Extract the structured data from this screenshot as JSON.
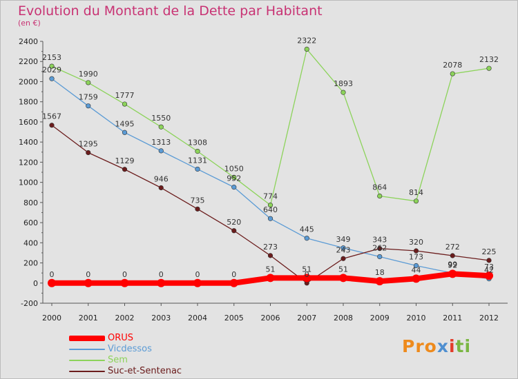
{
  "title": "Evolution du Montant de la Dette par Habitant",
  "subtitle": "(en €)",
  "brand": {
    "part1": "Pro",
    "part2": "x",
    "part3": "i",
    "part4": "ti"
  },
  "colors": {
    "background": "#e3e3e3",
    "title": "#c83273",
    "ORUS": "#ff0000",
    "Vicdessos": "#5b9bd5",
    "Sem": "#8cd35a",
    "Suc-et-Sentenac": "#6b1c1c"
  },
  "chart_data": {
    "type": "line",
    "title": "Evolution du Montant de la Dette par Habitant",
    "subtitle": "(en €)",
    "x": [
      "2000",
      "2001",
      "2002",
      "2003",
      "2004",
      "2005",
      "2006",
      "2007",
      "2008",
      "2009",
      "2010",
      "2011",
      "2012"
    ],
    "ylim": [
      -200,
      2400
    ],
    "yticks": [
      "-200",
      "0",
      "200",
      "400",
      "600",
      "800",
      "1000",
      "1200",
      "1400",
      "1600",
      "1800",
      "2000",
      "2200",
      "2400"
    ],
    "grid": false,
    "legend_position": "bottom-left",
    "series": [
      {
        "name": "ORUS",
        "color": "#ff0000",
        "values": [
          0,
          0,
          0,
          0,
          0,
          0,
          51,
          51,
          51,
          18,
          44,
          92,
          73
        ],
        "labels": [
          "0",
          "0",
          "0",
          "0",
          "0",
          "0",
          "51",
          "51",
          "51",
          "18",
          "44",
          "92",
          "73"
        ]
      },
      {
        "name": "Vicdessos",
        "color": "#5b9bd5",
        "values": [
          2029,
          1759,
          1495,
          1313,
          1131,
          952,
          640,
          445,
          349,
          262,
          173,
          99,
          42
        ],
        "labels": [
          "2029",
          "1759",
          "1495",
          "1313",
          "1131",
          "952",
          "640",
          "445",
          "349",
          "262",
          "173",
          "99",
          "42"
        ]
      },
      {
        "name": "Sem",
        "color": "#8cd35a",
        "values": [
          2153,
          1990,
          1777,
          1550,
          1308,
          1050,
          774,
          2322,
          1893,
          864,
          814,
          2078,
          2132
        ],
        "labels": [
          "2153",
          "1990",
          "1777",
          "1550",
          "1308",
          "1050",
          "774",
          "2322",
          "1893",
          "864",
          "814",
          "2078",
          "2132"
        ]
      },
      {
        "name": "Suc-et-Sentenac",
        "color": "#6b1c1c",
        "values": [
          1567,
          1295,
          1129,
          946,
          735,
          520,
          273,
          0,
          243,
          343,
          320,
          272,
          225
        ],
        "labels": [
          "1567",
          "1295",
          "1129",
          "946",
          "735",
          "520",
          "273",
          "0",
          "243",
          "343",
          "320",
          "272",
          "225"
        ]
      }
    ]
  }
}
